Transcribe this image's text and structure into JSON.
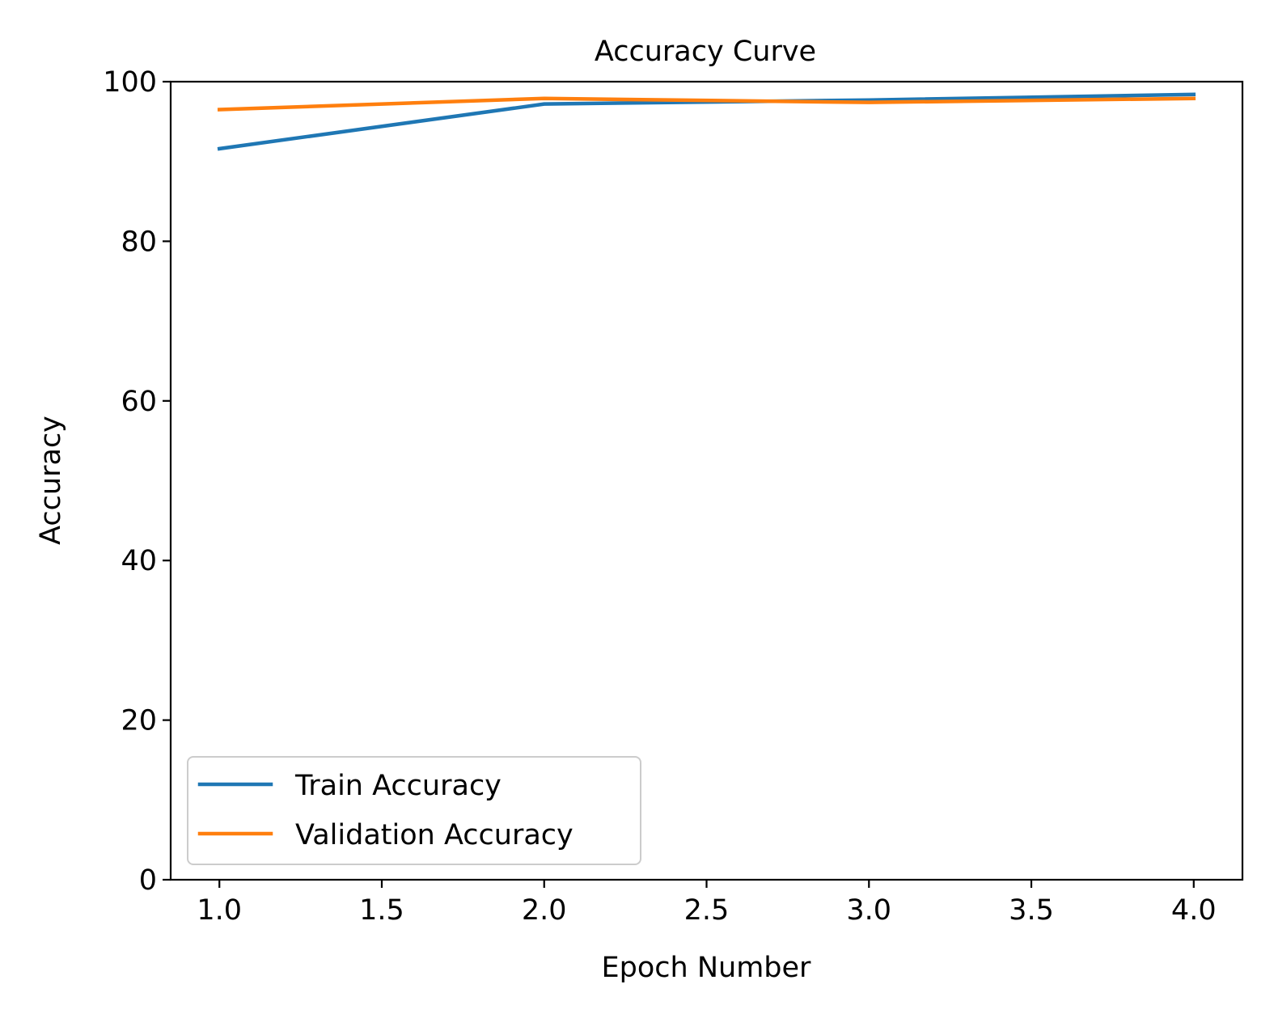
{
  "chart_data": {
    "type": "line",
    "title": "Accuracy Curve",
    "xlabel": "Epoch Number",
    "ylabel": "Accuracy",
    "xlim": [
      0.85,
      4.15
    ],
    "ylim": [
      0,
      100
    ],
    "xticks": [
      1.0,
      1.5,
      2.0,
      2.5,
      3.0,
      3.5,
      4.0
    ],
    "xtick_labels": [
      "1.0",
      "1.5",
      "2.0",
      "2.5",
      "3.0",
      "3.5",
      "4.0"
    ],
    "yticks": [
      0,
      20,
      40,
      60,
      80,
      100
    ],
    "ytick_labels": [
      "0",
      "20",
      "40",
      "60",
      "80",
      "100"
    ],
    "grid": false,
    "legend_position": "lower-left",
    "x": [
      1,
      2,
      3,
      4
    ],
    "series": [
      {
        "name": "Train Accuracy",
        "color": "#1f77b4",
        "values": [
          91.6,
          97.2,
          97.7,
          98.4
        ]
      },
      {
        "name": "Validation Accuracy",
        "color": "#ff7f0e",
        "values": [
          96.5,
          97.9,
          97.4,
          97.9
        ]
      }
    ]
  }
}
